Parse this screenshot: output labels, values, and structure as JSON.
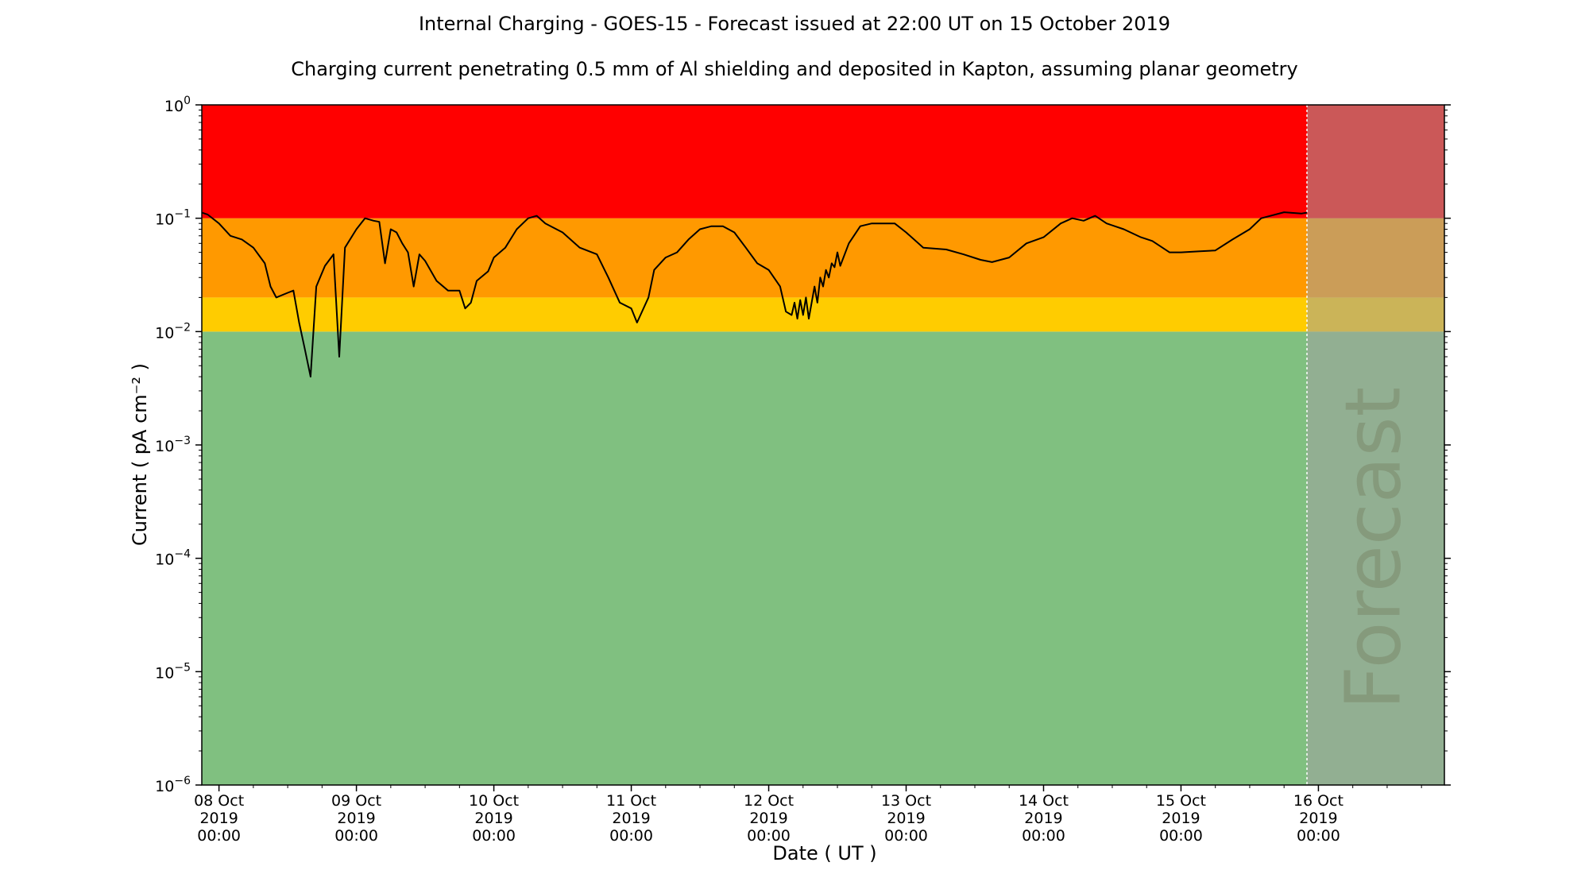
{
  "chart_data": {
    "type": "line",
    "title": "Internal Charging - GOES-15 - Forecast issued at 22:00 UT on 15 October 2019",
    "subtitle": "Charging current penetrating 0.5 mm of Al shielding and deposited in Kapton, assuming planar geometry",
    "xlabel": "Date ( UT )",
    "ylabel": "Current ( pA cm⁻² )",
    "yscale": "log",
    "ylim": [
      1e-06,
      1
    ],
    "xlim": [
      "2019-10-07T21:00",
      "2019-10-16T22:00"
    ],
    "grid": false,
    "forecast_start": "2019-10-15T22:00",
    "forecast_label": "Forecast",
    "x_ticks": [
      {
        "date": "2019-10-08T00:00",
        "label": [
          "08 Oct",
          "2019",
          "00:00"
        ]
      },
      {
        "date": "2019-10-09T00:00",
        "label": [
          "09 Oct",
          "2019",
          "00:00"
        ]
      },
      {
        "date": "2019-10-10T00:00",
        "label": [
          "10 Oct",
          "2019",
          "00:00"
        ]
      },
      {
        "date": "2019-10-11T00:00",
        "label": [
          "11 Oct",
          "2019",
          "00:00"
        ]
      },
      {
        "date": "2019-10-12T00:00",
        "label": [
          "12 Oct",
          "2019",
          "00:00"
        ]
      },
      {
        "date": "2019-10-13T00:00",
        "label": [
          "13 Oct",
          "2019",
          "00:00"
        ]
      },
      {
        "date": "2019-10-14T00:00",
        "label": [
          "14 Oct",
          "2019",
          "00:00"
        ]
      },
      {
        "date": "2019-10-15T00:00",
        "label": [
          "15 Oct",
          "2019",
          "00:00"
        ]
      },
      {
        "date": "2019-10-16T00:00",
        "label": [
          "16 Oct",
          "2019",
          "00:00"
        ]
      }
    ],
    "y_ticks": [
      {
        "value": 1e-06,
        "base": "10",
        "exp": "−6"
      },
      {
        "value": 1e-05,
        "base": "10",
        "exp": "−5"
      },
      {
        "value": 0.0001,
        "base": "10",
        "exp": "−4"
      },
      {
        "value": 0.001,
        "base": "10",
        "exp": "−3"
      },
      {
        "value": 0.01,
        "base": "10",
        "exp": "−2"
      },
      {
        "value": 0.1,
        "base": "10",
        "exp": "−1"
      },
      {
        "value": 1,
        "base": "10",
        "exp": "0"
      }
    ],
    "bands": [
      {
        "name": "green",
        "from": 1e-06,
        "to": 0.01,
        "color": "#80c080"
      },
      {
        "name": "yellow",
        "from": 0.01,
        "to": 0.02,
        "color": "#ffcc00"
      },
      {
        "name": "orange",
        "from": 0.02,
        "to": 0.1,
        "color": "#ff9900"
      },
      {
        "name": "red",
        "from": 0.1,
        "to": 1,
        "color": "#ff0000"
      }
    ],
    "forecast_overlay_color": "#a0a0a0",
    "series": [
      {
        "line_color": "#000000",
        "points": [
          [
            "2019-10-07T21:00",
            0.112
          ],
          [
            "2019-10-07T22:00",
            0.108
          ],
          [
            "2019-10-08T00:00",
            0.09
          ],
          [
            "2019-10-08T02:00",
            0.07
          ],
          [
            "2019-10-08T04:00",
            0.065
          ],
          [
            "2019-10-08T06:00",
            0.055
          ],
          [
            "2019-10-08T08:00",
            0.04
          ],
          [
            "2019-10-08T09:00",
            0.025
          ],
          [
            "2019-10-08T10:00",
            0.02
          ],
          [
            "2019-10-08T12:00",
            0.022
          ],
          [
            "2019-10-08T13:00",
            0.023
          ],
          [
            "2019-10-08T14:00",
            0.012
          ],
          [
            "2019-10-08T15:00",
            0.007
          ],
          [
            "2019-10-08T16:00",
            0.004
          ],
          [
            "2019-10-08T17:00",
            0.025
          ],
          [
            "2019-10-08T18:30",
            0.038
          ],
          [
            "2019-10-08T20:00",
            0.048
          ],
          [
            "2019-10-08T21:00",
            0.006
          ],
          [
            "2019-10-08T22:00",
            0.055
          ],
          [
            "2019-10-09T00:00",
            0.08
          ],
          [
            "2019-10-09T01:30",
            0.1
          ],
          [
            "2019-10-09T03:00",
            0.095
          ],
          [
            "2019-10-09T04:00",
            0.093
          ],
          [
            "2019-10-09T05:00",
            0.04
          ],
          [
            "2019-10-09T06:00",
            0.08
          ],
          [
            "2019-10-09T07:00",
            0.075
          ],
          [
            "2019-10-09T08:00",
            0.06
          ],
          [
            "2019-10-09T09:00",
            0.05
          ],
          [
            "2019-10-09T10:00",
            0.025
          ],
          [
            "2019-10-09T11:00",
            0.048
          ],
          [
            "2019-10-09T12:00",
            0.042
          ],
          [
            "2019-10-09T14:00",
            0.028
          ],
          [
            "2019-10-09T16:00",
            0.023
          ],
          [
            "2019-10-09T18:00",
            0.023
          ],
          [
            "2019-10-09T19:00",
            0.016
          ],
          [
            "2019-10-09T20:00",
            0.018
          ],
          [
            "2019-10-09T21:00",
            0.028
          ],
          [
            "2019-10-09T23:00",
            0.034
          ],
          [
            "2019-10-10T00:00",
            0.045
          ],
          [
            "2019-10-10T02:00",
            0.055
          ],
          [
            "2019-10-10T04:00",
            0.08
          ],
          [
            "2019-10-10T06:00",
            0.1
          ],
          [
            "2019-10-10T07:30",
            0.105
          ],
          [
            "2019-10-10T09:00",
            0.09
          ],
          [
            "2019-10-10T12:00",
            0.075
          ],
          [
            "2019-10-10T15:00",
            0.055
          ],
          [
            "2019-10-10T18:00",
            0.048
          ],
          [
            "2019-10-10T20:00",
            0.03
          ],
          [
            "2019-10-10T22:00",
            0.018
          ],
          [
            "2019-10-11T00:00",
            0.016
          ],
          [
            "2019-10-11T01:00",
            0.012
          ],
          [
            "2019-10-11T03:00",
            0.02
          ],
          [
            "2019-10-11T04:00",
            0.035
          ],
          [
            "2019-10-11T06:00",
            0.045
          ],
          [
            "2019-10-11T08:00",
            0.05
          ],
          [
            "2019-10-11T10:00",
            0.065
          ],
          [
            "2019-10-11T12:00",
            0.08
          ],
          [
            "2019-10-11T14:00",
            0.085
          ],
          [
            "2019-10-11T16:00",
            0.085
          ],
          [
            "2019-10-11T18:00",
            0.075
          ],
          [
            "2019-10-11T20:00",
            0.055
          ],
          [
            "2019-10-11T22:00",
            0.04
          ],
          [
            "2019-10-12T00:00",
            0.035
          ],
          [
            "2019-10-12T02:00",
            0.025
          ],
          [
            "2019-10-12T03:00",
            0.015
          ],
          [
            "2019-10-12T04:00",
            0.014
          ],
          [
            "2019-10-12T04:30",
            0.018
          ],
          [
            "2019-10-12T05:00",
            0.013
          ],
          [
            "2019-10-12T05:30",
            0.019
          ],
          [
            "2019-10-12T06:00",
            0.014
          ],
          [
            "2019-10-12T06:30",
            0.02
          ],
          [
            "2019-10-12T07:00",
            0.013
          ],
          [
            "2019-10-12T08:00",
            0.025
          ],
          [
            "2019-10-12T08:30",
            0.018
          ],
          [
            "2019-10-12T09:00",
            0.03
          ],
          [
            "2019-10-12T09:30",
            0.025
          ],
          [
            "2019-10-12T10:00",
            0.035
          ],
          [
            "2019-10-12T10:30",
            0.03
          ],
          [
            "2019-10-12T11:00",
            0.04
          ],
          [
            "2019-10-12T11:30",
            0.037
          ],
          [
            "2019-10-12T12:00",
            0.05
          ],
          [
            "2019-10-12T12:30",
            0.038
          ],
          [
            "2019-10-12T14:00",
            0.06
          ],
          [
            "2019-10-12T16:00",
            0.085
          ],
          [
            "2019-10-12T18:00",
            0.09
          ],
          [
            "2019-10-12T22:00",
            0.09
          ],
          [
            "2019-10-13T00:00",
            0.075
          ],
          [
            "2019-10-13T03:00",
            0.055
          ],
          [
            "2019-10-13T07:00",
            0.053
          ],
          [
            "2019-10-13T10:00",
            0.048
          ],
          [
            "2019-10-13T13:00",
            0.043
          ],
          [
            "2019-10-13T15:00",
            0.041
          ],
          [
            "2019-10-13T18:00",
            0.045
          ],
          [
            "2019-10-13T21:00",
            0.06
          ],
          [
            "2019-10-14T00:00",
            0.068
          ],
          [
            "2019-10-14T03:00",
            0.09
          ],
          [
            "2019-10-14T05:00",
            0.1
          ],
          [
            "2019-10-14T07:00",
            0.095
          ],
          [
            "2019-10-14T09:00",
            0.105
          ],
          [
            "2019-10-14T11:00",
            0.09
          ],
          [
            "2019-10-14T14:00",
            0.08
          ],
          [
            "2019-10-14T17:00",
            0.068
          ],
          [
            "2019-10-14T19:00",
            0.063
          ],
          [
            "2019-10-14T22:00",
            0.05
          ],
          [
            "2019-10-15T00:00",
            0.05
          ],
          [
            "2019-10-15T03:00",
            0.051
          ],
          [
            "2019-10-15T06:00",
            0.052
          ],
          [
            "2019-10-15T09:00",
            0.065
          ],
          [
            "2019-10-15T12:00",
            0.08
          ],
          [
            "2019-10-15T14:00",
            0.1
          ],
          [
            "2019-10-15T18:00",
            0.113
          ],
          [
            "2019-10-15T21:00",
            0.11
          ],
          [
            "2019-10-15T22:00",
            0.112
          ]
        ],
        "forecast_points": []
      }
    ]
  }
}
